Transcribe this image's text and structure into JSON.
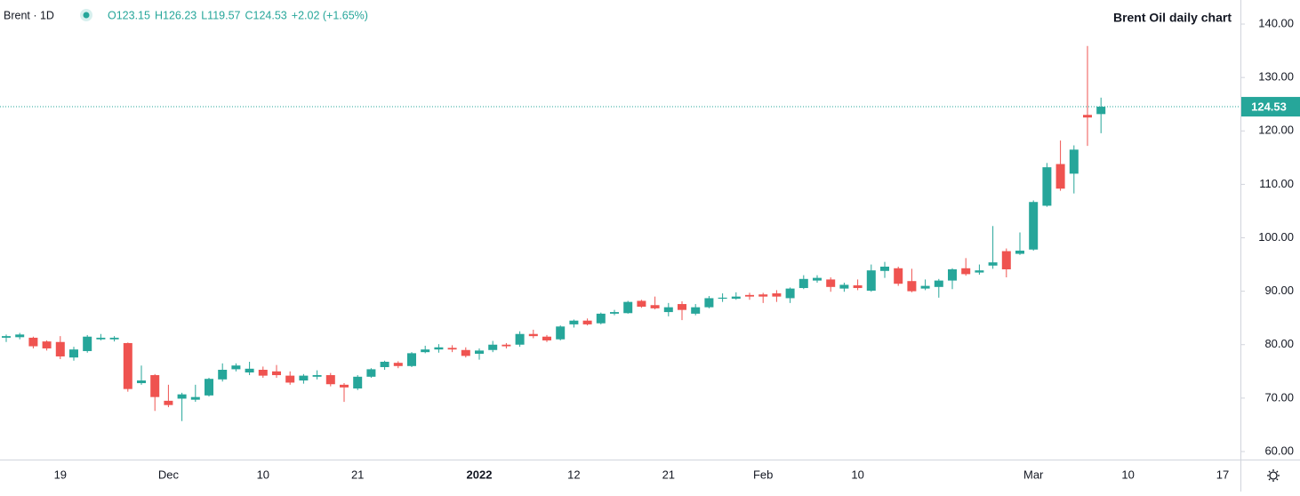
{
  "chart_data": {
    "type": "candlestick",
    "title": "Brent Oil daily chart",
    "symbol": "Brent · 1D",
    "header_ohlc": [
      "O123.15",
      "H126.23",
      "L119.57",
      "C124.53"
    ],
    "header_change": "+2.02 (+1.65%)",
    "up_color": "#26a69a",
    "down_color": "#ef5350",
    "last_price_line": true,
    "ylim": [
      58.5,
      144.5
    ],
    "yticks": [
      {
        "value": 60,
        "label": "60.00"
      },
      {
        "value": 70,
        "label": "70.00"
      },
      {
        "value": 80,
        "label": "80.00"
      },
      {
        "value": 90,
        "label": "90.00"
      },
      {
        "value": 100,
        "label": "100.00"
      },
      {
        "value": 110,
        "label": "110.00"
      },
      {
        "value": 120,
        "label": "120.00"
      },
      {
        "value": 130,
        "label": "130.00"
      },
      {
        "value": 140,
        "label": "140.00"
      }
    ],
    "categories": [
      null,
      null,
      null,
      null,
      "19",
      null,
      null,
      null,
      null,
      null,
      null,
      null,
      "Dec",
      null,
      null,
      null,
      null,
      null,
      null,
      "10",
      null,
      null,
      null,
      null,
      null,
      null,
      "21",
      null,
      null,
      null,
      null,
      null,
      null,
      null,
      null,
      "2022",
      null,
      null,
      null,
      null,
      null,
      null,
      "12",
      null,
      null,
      null,
      null,
      null,
      null,
      "21",
      null,
      null,
      null,
      null,
      null,
      null,
      "Feb",
      null,
      null,
      null,
      null,
      null,
      null,
      "10",
      null,
      null,
      null,
      null,
      null,
      null,
      null,
      null,
      null,
      null,
      null,
      null,
      "Mar",
      null,
      null,
      null,
      null,
      null,
      null,
      "10",
      null,
      null,
      null,
      null,
      null,
      null,
      "17",
      null
    ],
    "open": [
      81.3,
      81.4,
      81.3,
      80.6,
      80.5,
      77.6,
      78.8,
      81.0,
      81.0,
      80.3,
      72.8,
      74.3,
      69.5,
      69.9,
      69.7,
      70.5,
      73.5,
      75.4,
      74.8,
      75.3,
      75.0,
      74.2,
      73.3,
      74.0,
      74.3,
      72.5,
      71.8,
      74.0,
      75.8,
      76.6,
      76.0,
      78.6,
      79.1,
      79.4,
      79.0,
      78.3,
      79.0,
      80.0,
      80.0,
      82.0,
      81.5,
      81.0,
      83.8,
      84.5,
      84.0,
      85.8,
      85.9,
      88.2,
      87.4,
      86.1,
      87.6,
      85.8,
      87.0,
      88.6,
      88.6,
      89.3,
      89.4,
      89.6,
      88.7,
      90.6,
      92.0,
      92.2,
      90.5,
      91.1,
      90.1,
      93.8,
      94.3,
      91.9,
      90.5,
      90.8,
      92.0,
      94.3,
      93.5,
      94.8,
      97.5,
      97.0,
      97.8,
      106.0,
      113.8,
      112.0,
      123.0,
      123.15,
      null,
      null,
      null,
      null,
      null,
      null,
      null,
      null,
      null,
      null
    ],
    "high": [
      81.9,
      82.2,
      81.5,
      80.8,
      81.6,
      79.6,
      81.8,
      82.0,
      81.6,
      80.4,
      76.1,
      74.5,
      72.5,
      71.0,
      72.5,
      73.8,
      76.5,
      76.5,
      76.8,
      75.9,
      76.2,
      75.0,
      74.5,
      75.2,
      74.7,
      72.8,
      74.3,
      75.6,
      77.0,
      76.9,
      78.6,
      79.8,
      80.1,
      79.9,
      79.5,
      79.3,
      80.7,
      80.3,
      82.5,
      82.8,
      81.8,
      83.6,
      84.7,
      84.9,
      86.0,
      86.5,
      88.2,
      88.4,
      89.0,
      87.8,
      88.1,
      87.6,
      89.1,
      89.6,
      89.8,
      89.7,
      89.7,
      90.2,
      90.7,
      93.0,
      93.0,
      92.6,
      91.6,
      92.2,
      95.0,
      95.5,
      94.6,
      94.2,
      92.2,
      92.3,
      94.3,
      96.2,
      95.0,
      102.2,
      98.0,
      101.0,
      107.0,
      114.0,
      118.2,
      117.3,
      135.9,
      126.23,
      null,
      null,
      null,
      null,
      null,
      null,
      null,
      null,
      null,
      null
    ],
    "low": [
      80.5,
      81.0,
      79.3,
      78.9,
      77.3,
      77.0,
      78.5,
      80.8,
      80.6,
      71.2,
      72.5,
      67.6,
      68.3,
      65.7,
      69.3,
      70.3,
      73.1,
      75.0,
      74.3,
      73.8,
      73.8,
      72.5,
      72.7,
      73.5,
      72.2,
      69.3,
      71.5,
      73.8,
      75.3,
      75.6,
      75.8,
      78.4,
      78.5,
      78.6,
      77.6,
      77.2,
      78.6,
      79.3,
      79.6,
      81.2,
      80.5,
      80.8,
      83.2,
      83.6,
      83.8,
      85.5,
      85.8,
      86.9,
      86.6,
      85.3,
      84.6,
      85.5,
      86.8,
      88.0,
      88.4,
      88.4,
      87.8,
      88.0,
      87.8,
      90.4,
      91.6,
      89.9,
      89.9,
      90.2,
      89.9,
      92.5,
      91.0,
      89.8,
      90.2,
      88.8,
      90.4,
      92.9,
      93.1,
      94.2,
      92.6,
      96.8,
      97.6,
      105.8,
      108.8,
      108.3,
      117.2,
      119.57,
      null,
      null,
      null,
      null,
      null,
      null,
      null,
      null,
      null,
      null
    ],
    "close": [
      81.6,
      81.9,
      79.7,
      79.3,
      77.8,
      79.1,
      81.5,
      81.3,
      81.3,
      71.7,
      73.3,
      70.2,
      68.7,
      70.7,
      70.2,
      73.6,
      75.3,
      76.1,
      75.5,
      74.2,
      74.3,
      72.9,
      74.2,
      74.3,
      72.6,
      72.0,
      74.0,
      75.4,
      76.8,
      76.0,
      78.4,
      79.1,
      79.5,
      79.1,
      77.9,
      78.9,
      80.0,
      79.7,
      82.0,
      81.6,
      80.8,
      83.4,
      84.5,
      83.8,
      85.8,
      86.1,
      88.0,
      87.1,
      86.8,
      87.0,
      86.5,
      87.0,
      88.7,
      88.8,
      89.0,
      89.0,
      89.0,
      89.0,
      90.5,
      92.3,
      92.5,
      90.8,
      91.2,
      90.6,
      93.9,
      94.6,
      91.4,
      90.0,
      91.0,
      92.0,
      94.1,
      93.2,
      93.9,
      95.4,
      94.1,
      97.6,
      106.7,
      113.2,
      109.2,
      116.5,
      122.51,
      124.53,
      null,
      null,
      null,
      null,
      null,
      null,
      null,
      null,
      null,
      null
    ]
  }
}
